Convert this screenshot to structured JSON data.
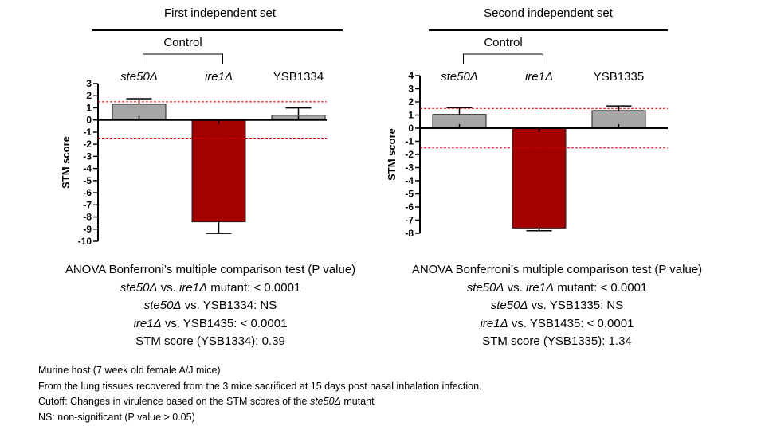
{
  "panels": [
    {
      "title": "First independent set",
      "control_label": "Control",
      "chart_data": {
        "type": "bar",
        "categories": [
          "ste50Δ",
          "ire1Δ",
          "YSB1334"
        ],
        "categories_italic": [
          true,
          true,
          false
        ],
        "values": [
          1.3,
          -8.4,
          0.39
        ],
        "errors": [
          0.45,
          0.95,
          0.6
        ],
        "bar_colors": [
          "#a6a6a6",
          "#a50000",
          "#a6a6a6"
        ],
        "ylabel": "STM score",
        "ylim": [
          -10,
          3
        ],
        "yticks": [
          3,
          2,
          1,
          0,
          -1,
          -2,
          -3,
          -4,
          -5,
          -6,
          -7,
          -8,
          -9,
          -10
        ],
        "cutoff_lines": [
          1.5,
          -1.5
        ],
        "cutoff_color": "#e00000",
        "grid": false
      },
      "stats": {
        "heading": "ANOVA Bonferroni’s multiple comparison test (P value)",
        "row1": {
          "a": "ste50Δ",
          "b": " vs. ",
          "c": "ire1Δ",
          "d": " mutant: < 0.0001"
        },
        "row2": {
          "a": "ste50Δ",
          "b": " vs. YSB1334: NS"
        },
        "row3": {
          "a": "ire1Δ",
          "b": " vs. YSB1435: < 0.0001"
        },
        "row4": "STM score (YSB1334): 0.39"
      }
    },
    {
      "title": "Second independent set",
      "control_label": "Control",
      "chart_data": {
        "type": "bar",
        "categories": [
          "ste50Δ",
          "ire1Δ",
          "YSB1335"
        ],
        "categories_italic": [
          true,
          true,
          false
        ],
        "values": [
          1.05,
          -7.6,
          1.34
        ],
        "errors": [
          0.5,
          0.2,
          0.35
        ],
        "bar_colors": [
          "#a6a6a6",
          "#a50000",
          "#a6a6a6"
        ],
        "ylabel": "STM score",
        "ylim": [
          -8,
          4
        ],
        "yticks": [
          4,
          3,
          2,
          1,
          0,
          -1,
          -2,
          -3,
          -4,
          -5,
          -6,
          -7,
          -8
        ],
        "cutoff_lines": [
          1.5,
          -1.5
        ],
        "cutoff_color": "#e00000",
        "grid": false
      },
      "stats": {
        "heading": "ANOVA Bonferroni’s multiple comparison test (P value)",
        "row1": {
          "a": "ste50Δ",
          "b": " vs. ",
          "c": "ire1Δ",
          "d": " mutant: < 0.0001"
        },
        "row2": {
          "a": "ste50Δ",
          "b": " vs. YSB1335:  NS"
        },
        "row3": {
          "a": "ire1Δ",
          "b": " vs. YSB1435: < 0.0001"
        },
        "row4": "STM score (YSB1335): 1.34"
      }
    }
  ],
  "footnotes": {
    "line1": "Murine host (7 week old female A/J mice)",
    "line2": "From  the lung tissues recovered from the 3 mice sacrificed at 15 days post nasal inhalation infection.",
    "line3": {
      "a": "Cutoff: Changes in virulence based on the STM scores of the ",
      "b": "ste50Δ",
      "c": " mutant"
    },
    "line4": "NS: non-significant (P value > 0.05)"
  }
}
